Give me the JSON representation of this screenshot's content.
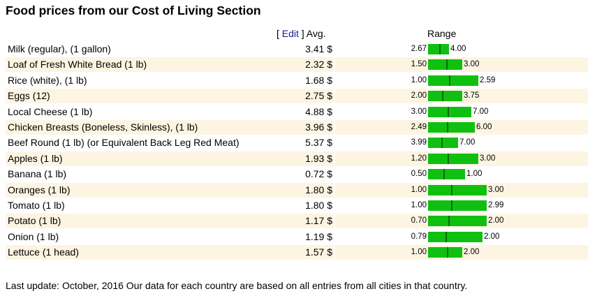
{
  "title": "Food prices from our Cost of Living Section",
  "header": {
    "edit_open": "[ ",
    "edit_label": "Edit",
    "edit_close": " ] Avg.",
    "range_label": "Range"
  },
  "colors": {
    "bar": "#10c010",
    "marker": "#0a6a0a",
    "row_shade": "#fdf5e2",
    "edit_link": "#1a1a8c"
  },
  "items": [
    {
      "name": "Milk (regular), (1 gallon)",
      "avg": "3.41 $",
      "low": "2.67",
      "high": "4.00"
    },
    {
      "name": "Loaf of Fresh White Bread (1 lb)",
      "avg": "2.32 $",
      "low": "1.50",
      "high": "3.00"
    },
    {
      "name": "Rice (white), (1 lb)",
      "avg": "1.68 $",
      "low": "1.00",
      "high": "2.59"
    },
    {
      "name": "Eggs (12)",
      "avg": "2.75 $",
      "low": "2.00",
      "high": "3.75"
    },
    {
      "name": "Local Cheese (1 lb)",
      "avg": "4.88 $",
      "low": "3.00",
      "high": "7.00"
    },
    {
      "name": "Chicken Breasts (Boneless, Skinless), (1 lb)",
      "avg": "3.96 $",
      "low": "2.49",
      "high": "6.00"
    },
    {
      "name": "Beef Round (1 lb) (or Equivalent Back Leg Red Meat)",
      "avg": "5.37 $",
      "low": "3.99",
      "high": "7.00"
    },
    {
      "name": "Apples (1 lb)",
      "avg": "1.93 $",
      "low": "1.20",
      "high": "3.00"
    },
    {
      "name": "Banana (1 lb)",
      "avg": "0.72 $",
      "low": "0.50",
      "high": "1.00"
    },
    {
      "name": "Oranges (1 lb)",
      "avg": "1.80 $",
      "low": "1.00",
      "high": "3.00"
    },
    {
      "name": "Tomato (1 lb)",
      "avg": "1.80 $",
      "low": "1.00",
      "high": "2.99"
    },
    {
      "name": "Potato (1 lb)",
      "avg": "1.17 $",
      "low": "0.70",
      "high": "2.00"
    },
    {
      "name": "Onion (1 lb)",
      "avg": "1.19 $",
      "low": "0.79",
      "high": "2.00"
    },
    {
      "name": "Lettuce (1 head)",
      "avg": "1.57 $",
      "low": "1.00",
      "high": "2.00"
    }
  ],
  "footer": "Last update: October, 2016 Our data for each country are based on all entries from all cities in that country."
}
